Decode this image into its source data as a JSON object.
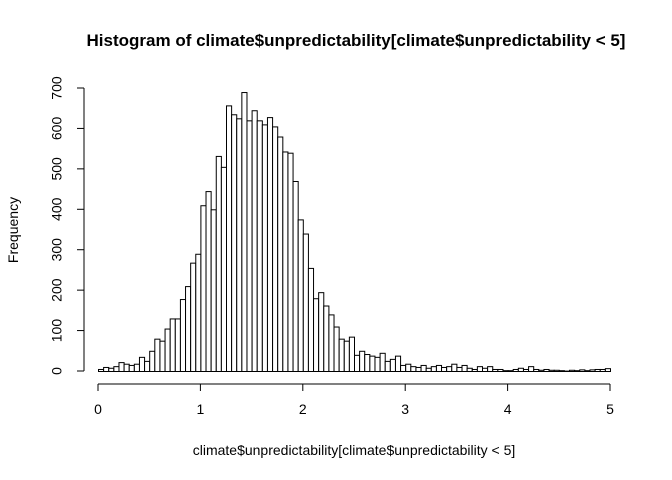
{
  "chart_data": {
    "type": "bar",
    "title": "Histogram of climate$unpredictability[climate$unpredictability < 5]",
    "xlabel": "climate$unpredictability[climate$unpredictability < 5]",
    "ylabel": "Frequency",
    "xlim": [
      0,
      5
    ],
    "ylim": [
      0,
      700
    ],
    "x_ticks": [
      0,
      1,
      2,
      3,
      4,
      5
    ],
    "y_ticks": [
      0,
      100,
      200,
      300,
      400,
      500,
      600,
      700
    ],
    "bin_width": 0.05,
    "bin_start": 0,
    "values": [
      5,
      10,
      8,
      12,
      22,
      18,
      15,
      18,
      35,
      25,
      50,
      80,
      75,
      105,
      130,
      130,
      178,
      210,
      268,
      290,
      410,
      445,
      400,
      532,
      505,
      657,
      635,
      625,
      690,
      620,
      645,
      620,
      610,
      628,
      605,
      580,
      543,
      540,
      470,
      375,
      340,
      255,
      180,
      195,
      162,
      140,
      110,
      80,
      75,
      85,
      40,
      50,
      42,
      38,
      35,
      45,
      25,
      30,
      38,
      15,
      18,
      12,
      10,
      15,
      8,
      12,
      15,
      10,
      12,
      18,
      10,
      15,
      8,
      5,
      12,
      8,
      12,
      5,
      5,
      2,
      2,
      5,
      8,
      5,
      12,
      5,
      3,
      5,
      3,
      3,
      2,
      1,
      3,
      2,
      4,
      2,
      4,
      5,
      5,
      7
    ]
  }
}
